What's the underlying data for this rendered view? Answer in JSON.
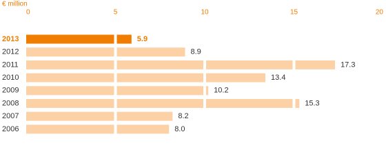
{
  "chart_data": {
    "type": "bar",
    "orientation": "horizontal",
    "x_label": "€ million",
    "categories": [
      "2013",
      "2012",
      "2011",
      "2010",
      "2009",
      "2008",
      "2007",
      "2006"
    ],
    "values": [
      5.9,
      8.9,
      17.3,
      13.4,
      10.2,
      15.3,
      8.2,
      8
    ],
    "value_labels": [
      "5.9",
      "8.9",
      "17.3",
      "13.4",
      "10.2",
      "15.3",
      "8.2",
      "8.0"
    ],
    "colors": [
      "#f07d00",
      "#fcd1a6",
      "#fcd1a6",
      "#fcd1a6",
      "#fcd1a6",
      "#fcd1a6",
      "#fcd1a6",
      "#fcd1a6"
    ],
    "xlim": [
      0,
      20
    ],
    "xticks": [
      0,
      5,
      10,
      15,
      20
    ],
    "grid": true
  }
}
